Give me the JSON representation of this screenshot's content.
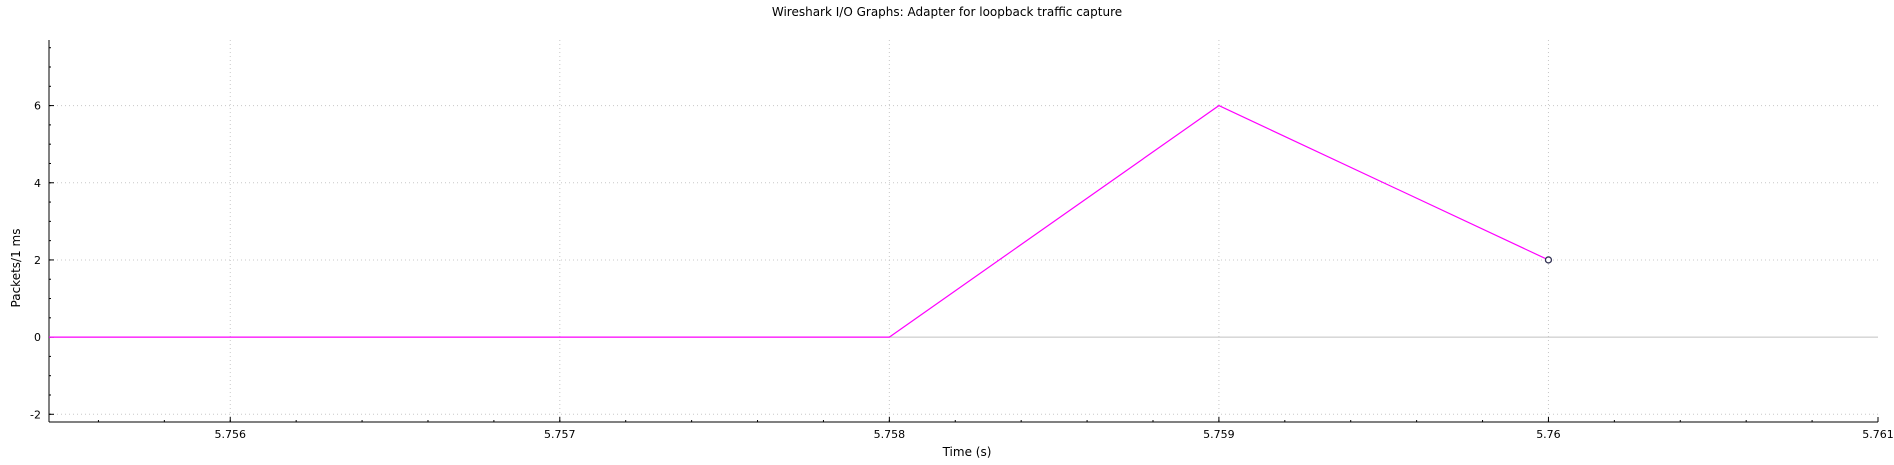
{
  "chart_data": {
    "type": "line",
    "title": "Wireshark I/O Graphs: Adapter for loopback traffic capture",
    "xlabel": "Time (s)",
    "ylabel": "Packets/1 ms",
    "xlim": [
      5.75545,
      5.761
    ],
    "ylim": [
      -2.2,
      7.7
    ],
    "x_ticks": [
      5.756,
      5.757,
      5.758,
      5.759,
      5.76,
      5.761
    ],
    "x_tick_labels": [
      "5.756",
      "5.757",
      "5.758",
      "5.759",
      "5.76",
      "5.761"
    ],
    "y_ticks": [
      -2,
      0,
      2,
      4,
      6
    ],
    "y_tick_labels": [
      "-2",
      "0",
      "2",
      "4",
      "6"
    ],
    "grid": true,
    "series": [
      {
        "color": "#ff00ff",
        "x": [
          5.75545,
          5.758,
          5.759,
          5.76
        ],
        "y": [
          0,
          0,
          6,
          2
        ]
      }
    ],
    "marker": {
      "x": 5.76,
      "y": 2
    }
  }
}
